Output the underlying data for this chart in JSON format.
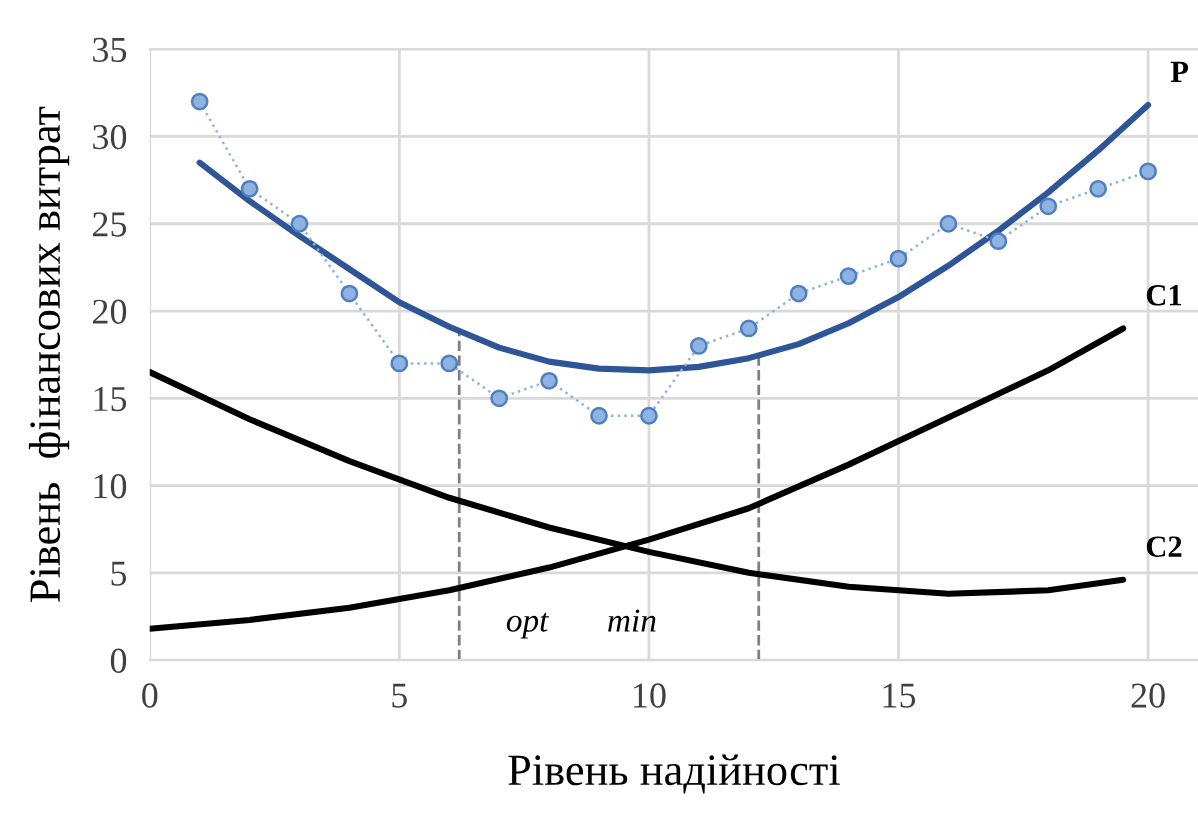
{
  "chart_data": {
    "type": "line",
    "xlabel": "Рівень надійності",
    "ylabel": "Рівень  фінансових витрат",
    "xlim": [
      0,
      21
    ],
    "ylim": [
      0,
      35
    ],
    "xticks": [
      0,
      5,
      10,
      15,
      20
    ],
    "yticks": [
      0,
      5,
      10,
      15,
      20,
      25,
      30,
      35
    ],
    "grid": true,
    "legend": false,
    "series": [
      {
        "x": [
          1,
          2,
          3,
          4,
          5,
          6,
          7,
          8,
          9,
          10,
          11,
          12,
          13,
          14,
          15,
          16,
          17,
          18,
          19,
          20
        ],
        "values": [
          32,
          27,
          25,
          21,
          17,
          17,
          15,
          16,
          14,
          14,
          18,
          19,
          21,
          22,
          23,
          25,
          24,
          26,
          27,
          28
        ],
        "color": "#8db3e2",
        "marker": "circle",
        "line_style": "dotted"
      },
      {
        "name": "P",
        "x": [
          1,
          2,
          3,
          4,
          5,
          6,
          7,
          8,
          9,
          10,
          11,
          12,
          13,
          14,
          15,
          16,
          17,
          18,
          19,
          20
        ],
        "values": [
          28.5,
          26.3,
          24.3,
          22.4,
          20.5,
          19.1,
          17.9,
          17.1,
          16.7,
          16.6,
          16.8,
          17.3,
          18.1,
          19.3,
          20.8,
          22.6,
          24.6,
          26.8,
          29.2,
          31.8
        ],
        "color": "#2e5597",
        "marker": "none",
        "line_style": "solid"
      },
      {
        "name": "C1",
        "x": [
          0,
          2,
          4,
          6,
          8,
          10,
          12,
          14,
          16,
          18,
          19.5
        ],
        "values": [
          1.8,
          2.3,
          3.0,
          4.0,
          5.3,
          6.9,
          8.7,
          11.2,
          13.9,
          16.6,
          19.0
        ],
        "color": "#000000",
        "marker": "none",
        "line_style": "solid"
      },
      {
        "name": "C2",
        "x": [
          0,
          2,
          4,
          6,
          8,
          10,
          12,
          14,
          16,
          18,
          19.5
        ],
        "values": [
          16.5,
          13.8,
          11.4,
          9.3,
          7.6,
          6.2,
          5.0,
          4.2,
          3.8,
          4.0,
          4.6
        ],
        "color": "#000000",
        "marker": "none",
        "line_style": "solid"
      }
    ],
    "ref_lines": [
      {
        "axis": "x",
        "value": 6.2,
        "color": "#808080",
        "line_style": "dashed"
      },
      {
        "axis": "x",
        "value": 12.2,
        "color": "#808080",
        "line_style": "dashed"
      }
    ],
    "annotations": [
      "opt",
      "min"
    ]
  }
}
